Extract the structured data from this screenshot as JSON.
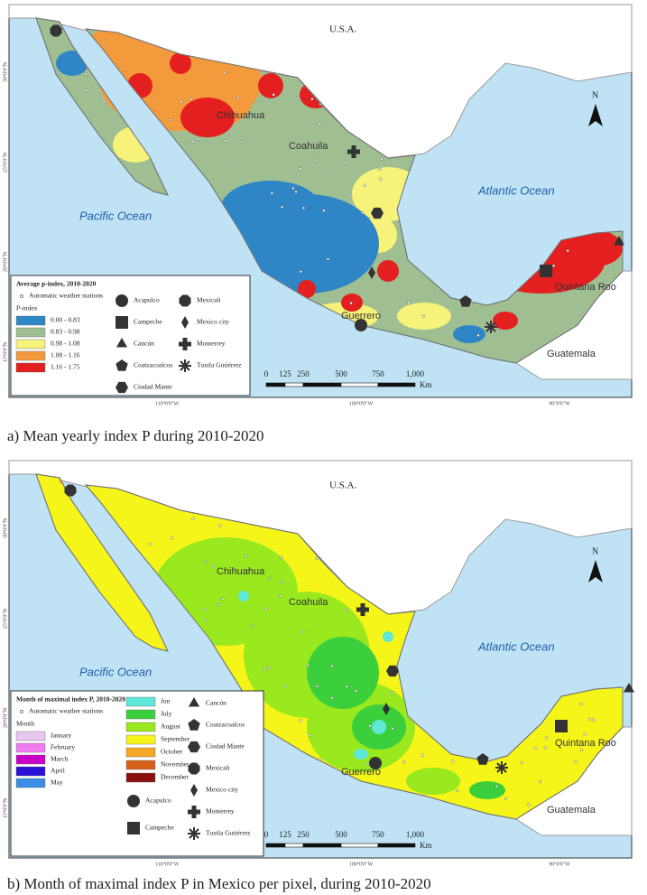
{
  "panels": [
    {
      "map_labels": {
        "country_north": "U.S.A.",
        "ocean_west": "Pacific Ocean",
        "ocean_east": "Atlantic Ocean",
        "states": [
          "Chihuahua",
          "Coahuila",
          "Guerrero",
          "Quintana Roo"
        ],
        "country_south": "Guatemala"
      },
      "north_arrow": "N",
      "scale_bar": {
        "ticks": [
          "0",
          "125",
          "250",
          "500",
          "750",
          "1,000"
        ],
        "unit": "Km"
      },
      "longitudes": [
        "110°0'0\"W",
        "100°0'0\"W",
        "90°0'0\"W"
      ],
      "latitudes": [
        "30°0'0\"N",
        "25°0'0\"N",
        "20°0'0\"N",
        "15°0'0\"N"
      ],
      "legend": {
        "title": "Average p-index, 2010-2020",
        "stations": "Automatic weather stations",
        "class_title": "P-index",
        "classes": [
          {
            "label": "0.00 - 0.83",
            "color": "#2f86c6"
          },
          {
            "label": "0.83 - 0.98",
            "color": "#9fbf92"
          },
          {
            "label": "0.98 - 1.08",
            "color": "#f6f27a"
          },
          {
            "label": "1.08 - 1.16",
            "color": "#f39a3c"
          },
          {
            "label": "1.16 - 1.75",
            "color": "#e3201f"
          }
        ],
        "cities": [
          "Acapulco",
          "Campeche",
          "Cancún",
          "Coatzacoalcos",
          "Ciudad Mante",
          "Mexicali",
          "Mexico city",
          "Monterrey",
          "Tuxtla Gutiérrez"
        ]
      },
      "caption": "a) Mean yearly index P during 2010-2020"
    },
    {
      "map_labels": {
        "country_north": "U.S.A.",
        "ocean_west": "Pacific Ocean",
        "ocean_east": "Atlantic Ocean",
        "states": [
          "Chihuahua",
          "Coahuila",
          "Guerrero",
          "Quintana Roo"
        ],
        "country_south": "Guatemala"
      },
      "north_arrow": "N",
      "scale_bar": {
        "ticks": [
          "0",
          "125",
          "250",
          "500",
          "750",
          "1,000"
        ],
        "unit": "Km"
      },
      "longitudes": [
        "110°0'0\"W",
        "100°0'0\"W",
        "90°0'0\"W"
      ],
      "latitudes": [
        "30°0'0\"N",
        "25°0'0\"N",
        "20°0'0\"N",
        "15°0'0\"N"
      ],
      "legend": {
        "title": "Month of maximal index P, 2010-2020",
        "stations": "Automatic weather stations",
        "class_title": "Month",
        "classes": [
          {
            "label": "January",
            "color": "#e8c6ef"
          },
          {
            "label": "February",
            "color": "#f07cf0"
          },
          {
            "label": "March",
            "color": "#c800c8"
          },
          {
            "label": "April",
            "color": "#2a10d8"
          },
          {
            "label": "May",
            "color": "#3a8ee6"
          },
          {
            "label": "Jun",
            "color": "#5fe8d8"
          },
          {
            "label": "July",
            "color": "#3ccf3c"
          },
          {
            "label": "August",
            "color": "#9ae81e"
          },
          {
            "label": "September",
            "color": "#f6f51a"
          },
          {
            "label": "October",
            "color": "#f5a623"
          },
          {
            "label": "November",
            "color": "#d4601a"
          },
          {
            "label": "December",
            "color": "#8b1010"
          }
        ],
        "cities": [
          "Acapulco",
          "Campeche",
          "Cancún",
          "Coatzacoalcos",
          "Ciudad Mante",
          "Mexicali",
          "Mexico city",
          "Monterrey",
          "Tuxtla Gutiérrez"
        ]
      },
      "caption": "b) Month of maximal index P in Mexico per pixel, during 2010-2020"
    }
  ]
}
